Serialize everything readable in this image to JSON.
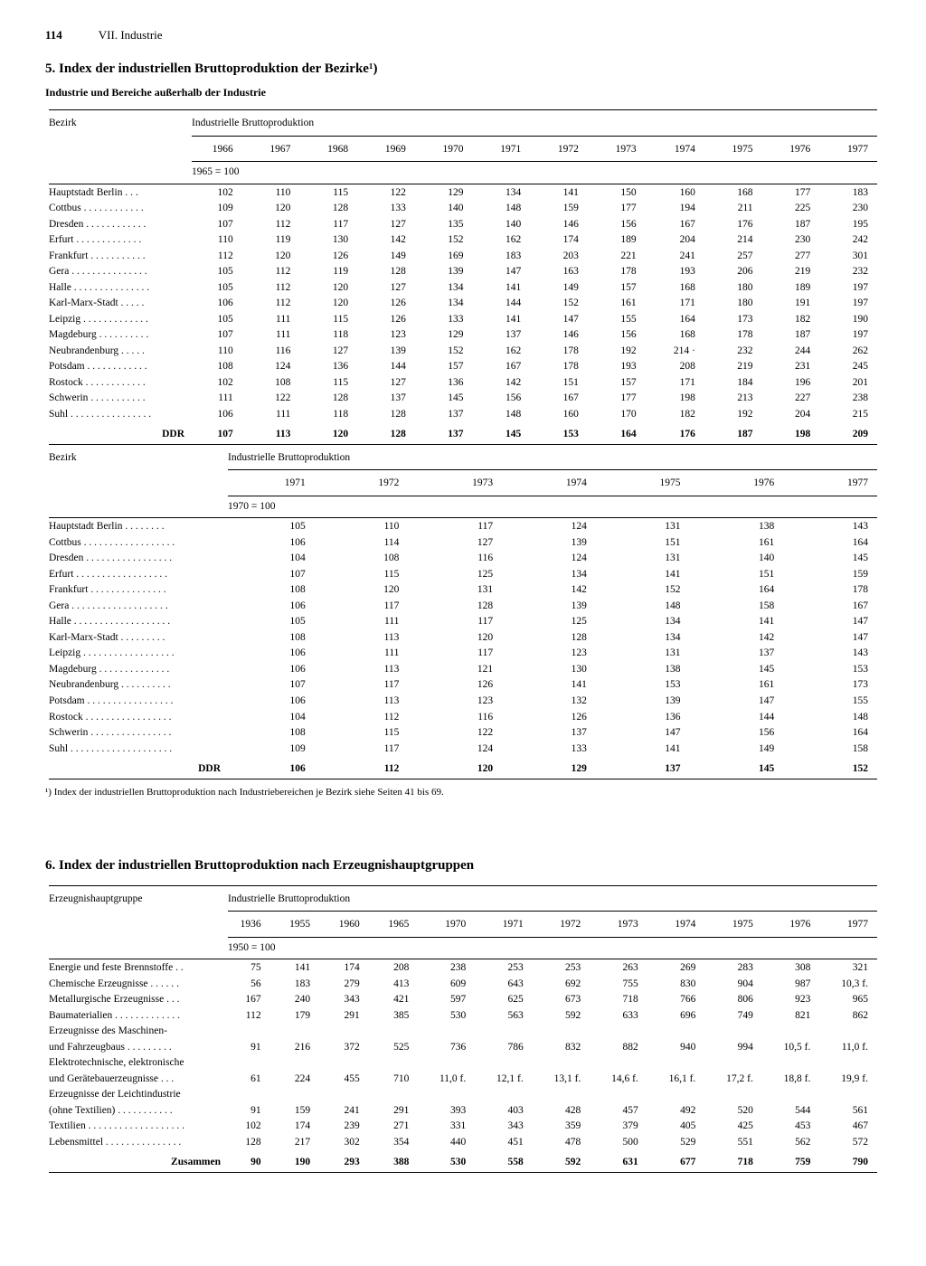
{
  "page": {
    "number": "114",
    "chapter": "VII. Industrie"
  },
  "section5": {
    "title": "5. Index der industriellen Bruttoproduktion der Bezirke¹)",
    "subtitle": "Industrie und Bereiche außerhalb der Industrie",
    "col_header": "Bezirk",
    "span_header": "Industrielle Bruttoproduktion",
    "tableA": {
      "years": [
        "1966",
        "1967",
        "1968",
        "1969",
        "1970",
        "1971",
        "1972",
        "1973",
        "1974",
        "1975",
        "1976",
        "1977"
      ],
      "base": "1965 = 100",
      "rows": [
        {
          "label": "Hauptstadt Berlin . . .",
          "v": [
            "102",
            "110",
            "115",
            "122",
            "129",
            "134",
            "141",
            "150",
            "160",
            "168",
            "177",
            "183"
          ]
        },
        {
          "label": "Cottbus . . . . . . . . . . . .",
          "v": [
            "109",
            "120",
            "128",
            "133",
            "140",
            "148",
            "159",
            "177",
            "194",
            "211",
            "225",
            "230"
          ]
        },
        {
          "label": "Dresden . . . . . . . . . . . .",
          "v": [
            "107",
            "112",
            "117",
            "127",
            "135",
            "140",
            "146",
            "156",
            "167",
            "176",
            "187",
            "195"
          ]
        },
        {
          "label": "Erfurt  . . . . . . . . . . . . .",
          "v": [
            "110",
            "119",
            "130",
            "142",
            "152",
            "162",
            "174",
            "189",
            "204",
            "214",
            "230",
            "242"
          ]
        },
        {
          "label": "Frankfurt . . . . . . . . . . .",
          "v": [
            "112",
            "120",
            "126",
            "149",
            "169",
            "183",
            "203",
            "221",
            "241",
            "257",
            "277",
            "301"
          ]
        },
        {
          "label": "Gera . . . . . . . . . . . . . . .",
          "v": [
            "105",
            "112",
            "119",
            "128",
            "139",
            "147",
            "163",
            "178",
            "193",
            "206",
            "219",
            "232"
          ]
        },
        {
          "label": "Halle . . . . . . . . . . . . . . .",
          "v": [
            "105",
            "112",
            "120",
            "127",
            "134",
            "141",
            "149",
            "157",
            "168",
            "180",
            "189",
            "197"
          ]
        },
        {
          "label": "Karl-Marx-Stadt . . . . .",
          "v": [
            "106",
            "112",
            "120",
            "126",
            "134",
            "144",
            "152",
            "161",
            "171",
            "180",
            "191",
            "197"
          ]
        },
        {
          "label": "Leipzig . . . . . . . . . . . . .",
          "v": [
            "105",
            "111",
            "115",
            "126",
            "133",
            "141",
            "147",
            "155",
            "164",
            "173",
            "182",
            "190"
          ]
        },
        {
          "label": "Magdeburg . . . . . . . . . .",
          "v": [
            "107",
            "111",
            "118",
            "123",
            "129",
            "137",
            "146",
            "156",
            "168",
            "178",
            "187",
            "197"
          ]
        },
        {
          "label": "Neubrandenburg . . . . .",
          "v": [
            "110",
            "116",
            "127",
            "139",
            "152",
            "162",
            "178",
            "192",
            "214 ·",
            "232",
            "244",
            "262"
          ]
        },
        {
          "label": "Potsdam . . . . . . . . . . . .",
          "v": [
            "108",
            "124",
            "136",
            "144",
            "157",
            "167",
            "178",
            "193",
            "208",
            "219",
            "231",
            "245"
          ]
        },
        {
          "label": "Rostock . . . . . . . . . . . .",
          "v": [
            "102",
            "108",
            "115",
            "127",
            "136",
            "142",
            "151",
            "157",
            "171",
            "184",
            "196",
            "201"
          ]
        },
        {
          "label": "Schwerin . . . . . . . . . . .",
          "v": [
            "111",
            "122",
            "128",
            "137",
            "145",
            "156",
            "167",
            "177",
            "198",
            "213",
            "227",
            "238"
          ]
        },
        {
          "label": "Suhl . . . . . . . . . . . . . . . .",
          "v": [
            "106",
            "111",
            "118",
            "128",
            "137",
            "148",
            "160",
            "170",
            "182",
            "192",
            "204",
            "215"
          ]
        }
      ],
      "total": {
        "label": "DDR",
        "v": [
          "107",
          "113",
          "120",
          "128",
          "137",
          "145",
          "153",
          "164",
          "176",
          "187",
          "198",
          "209"
        ]
      }
    },
    "tableB": {
      "years": [
        "1971",
        "1972",
        "1973",
        "1974",
        "1975",
        "1976",
        "1977"
      ],
      "base": "1970 = 100",
      "rows": [
        {
          "label": "Hauptstadt Berlin  . . . . . . . .",
          "v": [
            "105",
            "110",
            "117",
            "124",
            "131",
            "138",
            "143"
          ]
        },
        {
          "label": "Cottbus . . . . . . . . . . . . . . . . . .",
          "v": [
            "106",
            "114",
            "127",
            "139",
            "151",
            "161",
            "164"
          ]
        },
        {
          "label": "Dresden . . . . . . . . . . . . . . . . .",
          "v": [
            "104",
            "108",
            "116",
            "124",
            "131",
            "140",
            "145"
          ]
        },
        {
          "label": "Erfurt  . . . . . . . . . . . . . . . . . .",
          "v": [
            "107",
            "115",
            "125",
            "134",
            "141",
            "151",
            "159"
          ]
        },
        {
          "label": "Frankfurt  . . . . . . . . . . . . . . .",
          "v": [
            "108",
            "120",
            "131",
            "142",
            "152",
            "164",
            "178"
          ]
        },
        {
          "label": "Gera  . . . . . . . . . . . . . . . . . . .",
          "v": [
            "106",
            "117",
            "128",
            "139",
            "148",
            "158",
            "167"
          ]
        },
        {
          "label": "Halle . . . . . . . . . . . . . . . . . . .",
          "v": [
            "105",
            "111",
            "117",
            "125",
            "134",
            "141",
            "147"
          ]
        },
        {
          "label": "Karl-Marx-Stadt  . . . . . . . . .",
          "v": [
            "108",
            "113",
            "120",
            "128",
            "134",
            "142",
            "147"
          ]
        },
        {
          "label": "Leipzig . . . . . . . . . . . . . . . . . .",
          "v": [
            "106",
            "111",
            "117",
            "123",
            "131",
            "137",
            "143"
          ]
        },
        {
          "label": "Magdeburg  . . . . . . . . . . . . . .",
          "v": [
            "106",
            "113",
            "121",
            "130",
            "138",
            "145",
            "153"
          ]
        },
        {
          "label": "Neubrandenburg . . . . . . . . . .",
          "v": [
            "107",
            "117",
            "126",
            "141",
            "153",
            "161",
            "173"
          ]
        },
        {
          "label": "Potsdam . . . . . . . . . . . . . . . . .",
          "v": [
            "106",
            "113",
            "123",
            "132",
            "139",
            "147",
            "155"
          ]
        },
        {
          "label": "Rostock  . . . . . . . . . . . . . . . . .",
          "v": [
            "104",
            "112",
            "116",
            "126",
            "136",
            "144",
            "148"
          ]
        },
        {
          "label": "Schwerin . . . . . . . . . . . . . . . .",
          "v": [
            "108",
            "115",
            "122",
            "137",
            "147",
            "156",
            "164"
          ]
        },
        {
          "label": "Suhl . . . . . . . . . . . . . . . . . . . .",
          "v": [
            "109",
            "117",
            "124",
            "133",
            "141",
            "149",
            "158"
          ]
        }
      ],
      "total": {
        "label": "DDR",
        "v": [
          "106",
          "112",
          "120",
          "129",
          "137",
          "145",
          "152"
        ]
      }
    },
    "footnote": "¹) Index der industriellen Bruttoproduktion nach Industriebereichen je Bezirk siehe Seiten 41 bis 69."
  },
  "section6": {
    "title": "6. Index der industriellen Bruttoproduktion nach Erzeugnishauptgruppen",
    "col_header": "Erzeugnishauptgruppe",
    "span_header": "Industrielle Bruttoproduktion",
    "table": {
      "years": [
        "1936",
        "1955",
        "1960",
        "1965",
        "1970",
        "1971",
        "1972",
        "1973",
        "1974",
        "1975",
        "1976",
        "1977"
      ],
      "base": "1950 = 100",
      "rows": [
        {
          "label": "Energie und feste Brennstoffe . .",
          "v": [
            "75",
            "141",
            "174",
            "208",
            "238",
            "253",
            "253",
            "263",
            "269",
            "283",
            "308",
            "321"
          ]
        },
        {
          "label": "Chemische Erzeugnisse  . . . . . .",
          "v": [
            "56",
            "183",
            "279",
            "413",
            "609",
            "643",
            "692",
            "755",
            "830",
            "904",
            "987",
            "10,3 f."
          ]
        },
        {
          "label": "Metallurgische Erzeugnisse  . . .",
          "v": [
            "167",
            "240",
            "343",
            "421",
            "597",
            "625",
            "673",
            "718",
            "766",
            "806",
            "923",
            "965"
          ]
        },
        {
          "label": "Baumaterialien  . . . . . . . . . . . . .",
          "v": [
            "112",
            "179",
            "291",
            "385",
            "530",
            "563",
            "592",
            "633",
            "696",
            "749",
            "821",
            "862"
          ]
        },
        {
          "label": "Erzeugnisse des Maschinen-",
          "v": [
            "",
            "",
            "",
            "",
            "",
            "",
            "",
            "",
            "",
            "",
            "",
            ""
          ]
        },
        {
          "label": "  und Fahrzeugbaus  . . . . . . . . .",
          "v": [
            "91",
            "216",
            "372",
            "525",
            "736",
            "786",
            "832",
            "882",
            "940",
            "994",
            "10,5 f.",
            "11,0 f."
          ]
        },
        {
          "label": "Elektrotechnische, elektronische",
          "v": [
            "",
            "",
            "",
            "",
            "",
            "",
            "",
            "",
            "",
            "",
            "",
            ""
          ]
        },
        {
          "label": "  und Gerätebauerzeugnisse  . . .",
          "v": [
            "61",
            "224",
            "455",
            "710",
            "11,0 f.",
            "12,1 f.",
            "13,1 f.",
            "14,6 f.",
            "16,1 f.",
            "17,2 f.",
            "18,8 f.",
            "19,9 f."
          ]
        },
        {
          "label": "Erzeugnisse der Leichtindustrie",
          "v": [
            "",
            "",
            "",
            "",
            "",
            "",
            "",
            "",
            "",
            "",
            "",
            ""
          ]
        },
        {
          "label": "  (ohne Textilien)  . . . . . . . . . . .",
          "v": [
            "91",
            "159",
            "241",
            "291",
            "393",
            "403",
            "428",
            "457",
            "492",
            "520",
            "544",
            "561"
          ]
        },
        {
          "label": "Textilien . . . . . . . . . . . . . . . . . . .",
          "v": [
            "102",
            "174",
            "239",
            "271",
            "331",
            "343",
            "359",
            "379",
            "405",
            "425",
            "453",
            "467"
          ]
        },
        {
          "label": "Lebensmittel  . . . . . . . . . . . . . . .",
          "v": [
            "128",
            "217",
            "302",
            "354",
            "440",
            "451",
            "478",
            "500",
            "529",
            "551",
            "562",
            "572"
          ]
        }
      ],
      "total": {
        "label": "Zusammen",
        "v": [
          "90",
          "190",
          "293",
          "388",
          "530",
          "558",
          "592",
          "631",
          "677",
          "718",
          "759",
          "790"
        ]
      }
    }
  }
}
